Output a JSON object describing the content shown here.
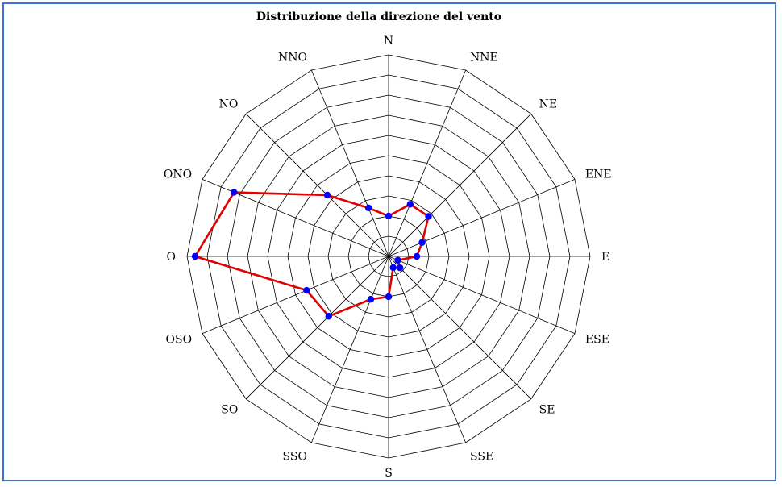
{
  "chart_data": {
    "type": "radar",
    "title": "Distribuzione della direzione del vento",
    "categories": [
      "N",
      "NNE",
      "NE",
      "ENE",
      "E",
      "ESE",
      "SE",
      "SSE",
      "S",
      "SSO",
      "SO",
      "OSO",
      "O",
      "ONO",
      "NO",
      "NNO"
    ],
    "series": [
      {
        "values": [
          2.0,
          2.8,
          2.8,
          1.8,
          1.4,
          0.5,
          0.8,
          0.6,
          2.0,
          2.3,
          4.2,
          4.4,
          9.6,
          8.3,
          4.3,
          2.6
        ],
        "color": "#e00000",
        "marker_color": "#0000ff"
      }
    ],
    "rlim": [
      0,
      10
    ],
    "ring_count": 10,
    "grid": true,
    "legend": "none",
    "frame_color": "#3f6fd8"
  }
}
